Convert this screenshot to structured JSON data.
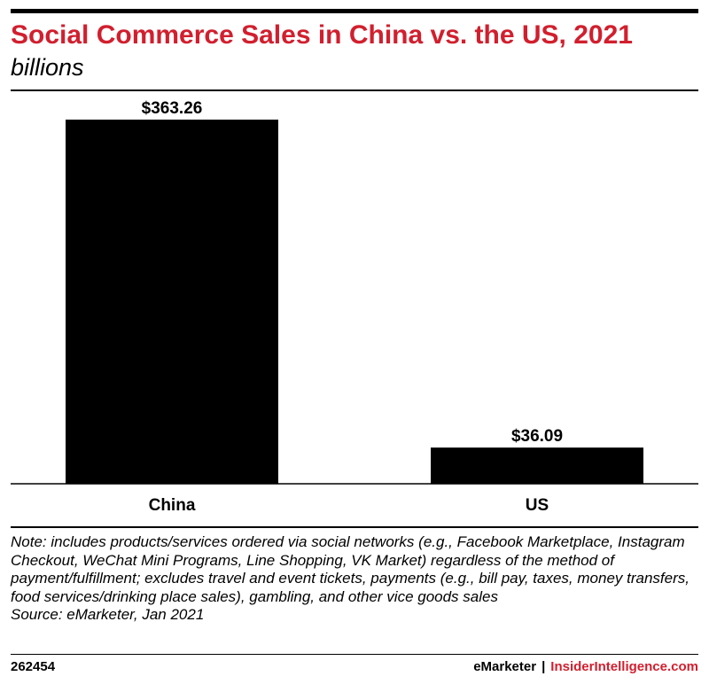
{
  "header": {
    "title": "Social Commerce Sales in China vs. the US, 2021",
    "subtitle": "billions"
  },
  "colors": {
    "title": "#d11f2e",
    "bar": "#000000",
    "brand_accent": "#d11f2e"
  },
  "chart_data": {
    "type": "bar",
    "categories": [
      "China",
      "US"
    ],
    "values": [
      363.26,
      36.09
    ],
    "data_labels": [
      "$363.26",
      "$36.09"
    ],
    "title": "Social Commerce Sales in China vs. the US, 2021",
    "subtitle": "billions",
    "xlabel": "",
    "ylabel": "",
    "ylim": [
      0,
      363.26
    ],
    "grid": false,
    "legend": "none"
  },
  "notes": {
    "note": "Note: includes products/services ordered via social networks (e.g., Facebook Marketplace, Instagram Checkout, WeChat Mini Programs, Line Shopping, VK Market) regardless of the method of payment/fulfillment; excludes travel and event tickets, payments (e.g., bill pay, taxes, money transfers, food services/drinking place sales), gambling, and other vice goods sales",
    "source": "Source: eMarketer, Jan 2021"
  },
  "footer": {
    "chart_id": "262454",
    "brand1": "eMarketer",
    "separator": "|",
    "brand2": "InsiderIntelligence.com"
  }
}
